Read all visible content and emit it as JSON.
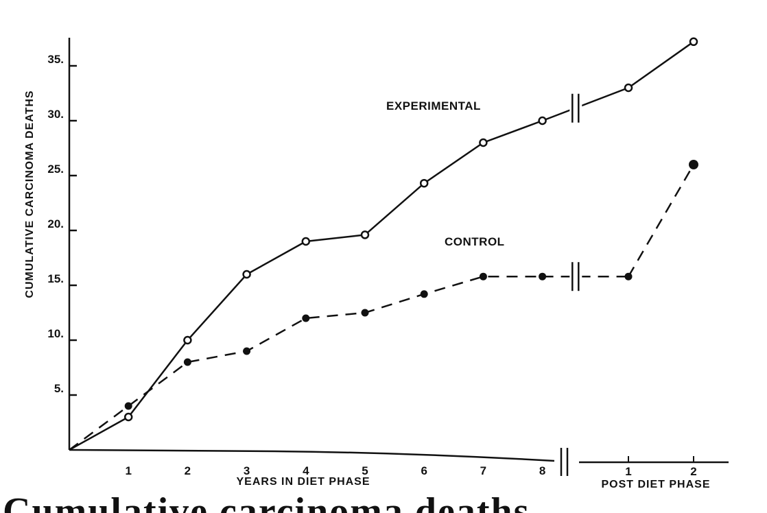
{
  "chart_data": {
    "type": "line",
    "ylabel": "CUMULATIVE CARCINOMA DEATHS",
    "xlabel": "YEARS IN DIET PHASE",
    "xlabel_post": "POST DIET PHASE",
    "y_ticks": [
      5,
      10,
      15,
      20,
      25,
      30,
      35
    ],
    "ylim": [
      0,
      37
    ],
    "x_ticks_diet": [
      "1",
      "2",
      "3",
      "4",
      "5",
      "6",
      "7",
      "8"
    ],
    "x_ticks_post": [
      "1",
      "2"
    ],
    "series": [
      {
        "name": "EXPERIMENTAL",
        "style": "solid",
        "marker": "open-circle",
        "diet_phase": {
          "x": [
            0,
            1,
            2,
            3,
            4,
            5,
            6,
            7,
            8
          ],
          "y": [
            0,
            3,
            10,
            16,
            19,
            19.6,
            24.3,
            28,
            30
          ]
        },
        "post_diet_phase": {
          "x": [
            1,
            2
          ],
          "y": [
            33,
            37.2
          ]
        }
      },
      {
        "name": "CONTROL",
        "style": "dashed",
        "marker": "filled-circle",
        "diet_phase": {
          "x": [
            0,
            1,
            2,
            3,
            4,
            5,
            6,
            7,
            8
          ],
          "y": [
            0,
            4,
            8,
            9,
            12,
            12.5,
            14.2,
            15.8,
            15.8
          ]
        },
        "post_diet_phase": {
          "x": [
            1,
            2
          ],
          "y": [
            15.8,
            26
          ]
        }
      }
    ]
  },
  "caption_fragment": "Cumulative carcinoma deaths"
}
